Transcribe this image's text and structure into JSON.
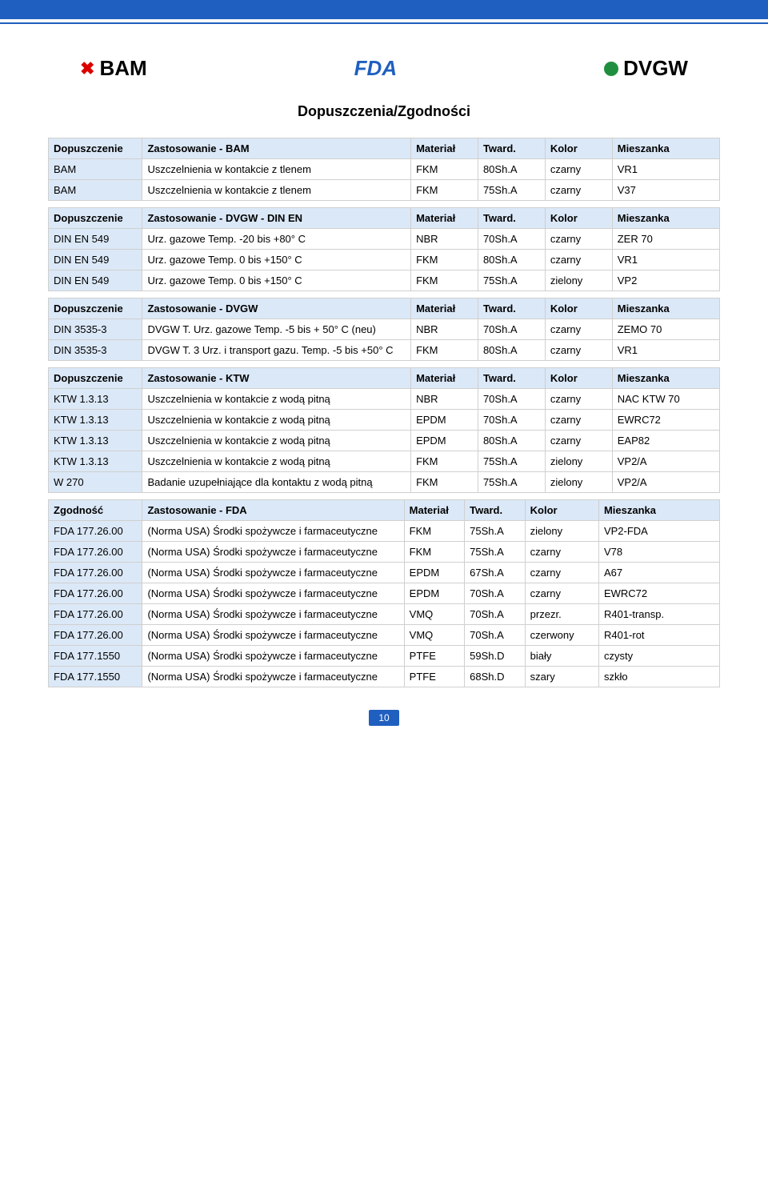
{
  "page": {
    "title": "Dopuszczenia/Zgodności",
    "number": "10"
  },
  "logos": {
    "bam": "BAM",
    "fda": "FDA",
    "dvgw": "DVGW"
  },
  "tbl_bam": {
    "head": [
      "Dopuszczenie",
      "Zastosowanie - BAM",
      "Materiał",
      "Tward.",
      "Kolor",
      "Mieszanka"
    ],
    "rows": [
      [
        "BAM",
        "Uszczelnienia w kontakcie z tlenem",
        "FKM",
        "80Sh.A",
        "czarny",
        "VR1"
      ],
      [
        "BAM",
        "Uszczelnienia w kontakcie z tlenem",
        "FKM",
        "75Sh.A",
        "czarny",
        "V37"
      ]
    ]
  },
  "tbl_dvgw_din": {
    "head": [
      "Dopuszczenie",
      "Zastosowanie - DVGW - DIN EN",
      "Materiał",
      "Tward.",
      "Kolor",
      "Mieszanka"
    ],
    "rows": [
      [
        "DIN EN 549",
        "Urz. gazowe Temp. -20 bis +80° C",
        "NBR",
        "70Sh.A",
        "czarny",
        "ZER 70"
      ],
      [
        "DIN EN 549",
        "Urz. gazowe Temp. 0 bis +150° C",
        "FKM",
        "80Sh.A",
        "czarny",
        "VR1"
      ],
      [
        "DIN EN 549",
        "Urz. gazowe Temp. 0 bis +150° C",
        "FKM",
        "75Sh.A",
        "zielony",
        "VP2"
      ]
    ]
  },
  "tbl_dvgw": {
    "head": [
      "Dopuszczenie",
      "Zastosowanie - DVGW",
      "Materiał",
      "Tward.",
      "Kolor",
      "Mieszanka"
    ],
    "rows": [
      [
        "DIN 3535-3",
        "DVGW T. Urz. gazowe Temp. -5 bis + 50° C (neu)",
        "NBR",
        "70Sh.A",
        "czarny",
        "ZEMO 70"
      ],
      [
        "DIN 3535-3",
        "DVGW T. 3 Urz. i transport gazu. Temp. -5 bis +50° C",
        "FKM",
        "80Sh.A",
        "czarny",
        "VR1"
      ]
    ]
  },
  "tbl_ktw": {
    "head": [
      "Dopuszczenie",
      "Zastosowanie - KTW",
      "Materiał",
      "Tward.",
      "Kolor",
      "Mieszanka"
    ],
    "rows": [
      [
        "KTW 1.3.13",
        "Uszczelnienia w kontakcie z wodą pitną",
        "NBR",
        "70Sh.A",
        "czarny",
        "NAC KTW 70"
      ],
      [
        "KTW 1.3.13",
        "Uszczelnienia w kontakcie z wodą pitną",
        "EPDM",
        "70Sh.A",
        "czarny",
        "EWRC72"
      ],
      [
        "KTW 1.3.13",
        "Uszczelnienia w kontakcie z wodą pitną",
        "EPDM",
        "80Sh.A",
        "czarny",
        "EAP82"
      ],
      [
        "KTW 1.3.13",
        "Uszczelnienia w kontakcie z wodą pitną",
        "FKM",
        "75Sh.A",
        "zielony",
        "VP2/A"
      ],
      [
        "W 270",
        "Badanie uzupełniające dla kontaktu z wodą pitną",
        "FKM",
        "75Sh.A",
        "zielony",
        "VP2/A"
      ]
    ]
  },
  "tbl_fda": {
    "head": [
      "Zgodność",
      "Zastosowanie - FDA",
      "Materiał",
      "Tward.",
      "Kolor",
      "Mieszanka"
    ],
    "rows": [
      [
        "FDA 177.26.00",
        "(Norma USA)  Środki spożywcze i farmaceutyczne",
        "FKM",
        "75Sh.A",
        "zielony",
        "VP2-FDA"
      ],
      [
        "FDA 177.26.00",
        "(Norma USA)  Środki spożywcze i farmaceutyczne",
        "FKM",
        "75Sh.A",
        "czarny",
        "V78"
      ],
      [
        "FDA 177.26.00",
        "(Norma USA)  Środki spożywcze i farmaceutyczne",
        "EPDM",
        "67Sh.A",
        "czarny",
        "A67"
      ],
      [
        "FDA 177.26.00",
        "(Norma USA)  Środki spożywcze i farmaceutyczne",
        "EPDM",
        "70Sh.A",
        "czarny",
        "EWRC72"
      ],
      [
        "FDA 177.26.00",
        "(Norma USA)  Środki spożywcze i farmaceutyczne",
        "VMQ",
        "70Sh.A",
        "przezr.",
        "R401-transp."
      ],
      [
        "FDA 177.26.00",
        "(Norma USA)  Środki spożywcze i farmaceutyczne",
        "VMQ",
        "70Sh.A",
        "czerwony",
        "R401-rot"
      ],
      [
        "FDA 177.1550",
        "(Norma USA)  Środki spożywcze i farmaceutyczne",
        "PTFE",
        "59Sh.D",
        "biały",
        "czysty"
      ],
      [
        "FDA 177.1550",
        "(Norma USA)  Środki spożywcze i farmaceutyczne",
        "PTFE",
        "68Sh.D",
        "szary",
        "szkło"
      ]
    ]
  },
  "colwidths": {
    "generic": [
      "14%",
      "40%",
      "10%",
      "10%",
      "10%",
      "16%"
    ],
    "fda": [
      "14%",
      "39%",
      "9%",
      "9%",
      "11%",
      "18%"
    ]
  }
}
